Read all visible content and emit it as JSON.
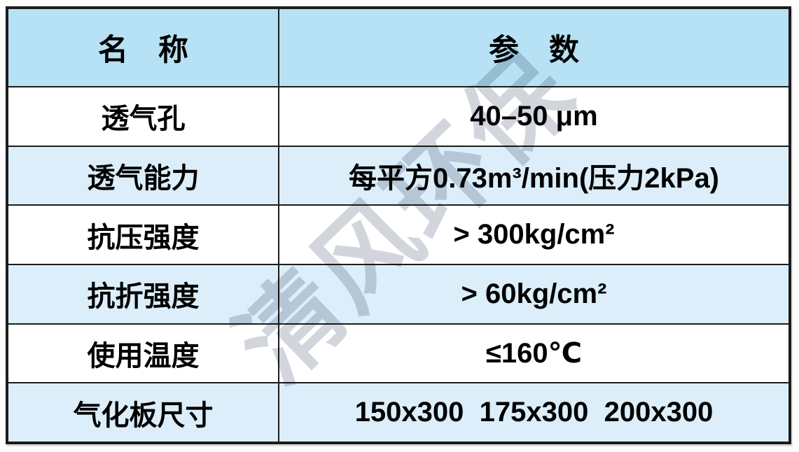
{
  "watermark": "清风环保",
  "colors": {
    "header_bg": "#b7e1f4",
    "alt_row_bg": "#dceef9",
    "border": "#1c1c1c",
    "text": "#000000",
    "watermark_color": "#d2d6dc"
  },
  "table": {
    "columns": [
      {
        "label": "名　称"
      },
      {
        "label": "参　数"
      }
    ],
    "rows": [
      {
        "name": "透气孔",
        "value": "40–50 μm"
      },
      {
        "name": "透气能力",
        "value": "每平方0.73m³/min(压力2kPa)"
      },
      {
        "name": "抗压强度",
        "value": "> 300kg/cm²"
      },
      {
        "name": "抗折强度",
        "value": "> 60kg/cm²"
      },
      {
        "name": "使用温度",
        "value": "≤160℃"
      },
      {
        "name": "气化板尺寸",
        "value": "150x300  175x300  200x300"
      }
    ]
  }
}
